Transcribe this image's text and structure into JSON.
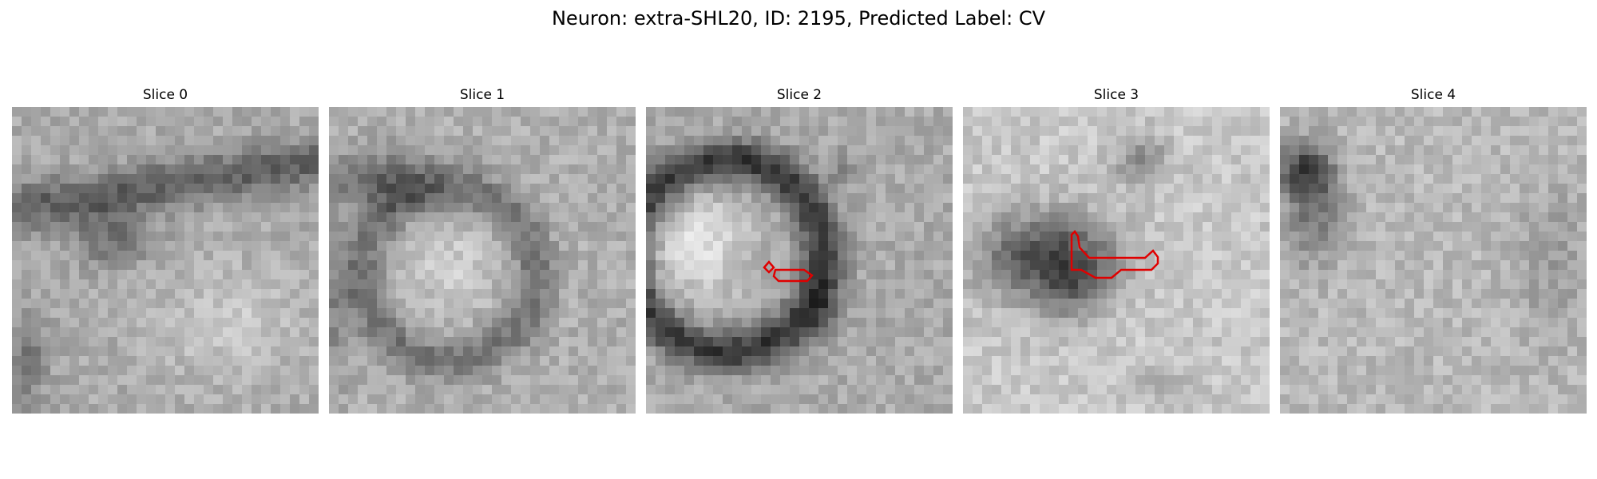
{
  "figure": {
    "title": "Neuron: extra-SHL20, ID: 2195, Predicted Label: CV"
  },
  "panels": [
    {
      "title": "Slice 0",
      "has_contour": false
    },
    {
      "title": "Slice 1",
      "has_contour": false
    },
    {
      "title": "Slice 2",
      "has_contour": true
    },
    {
      "title": "Slice 3",
      "has_contour": true
    },
    {
      "title": "Slice 4",
      "has_contour": false
    }
  ],
  "colors": {
    "contour": "#e00000",
    "background": "#ffffff"
  },
  "image_style": "grayscale electron microscopy patch, 32x32 pixels"
}
